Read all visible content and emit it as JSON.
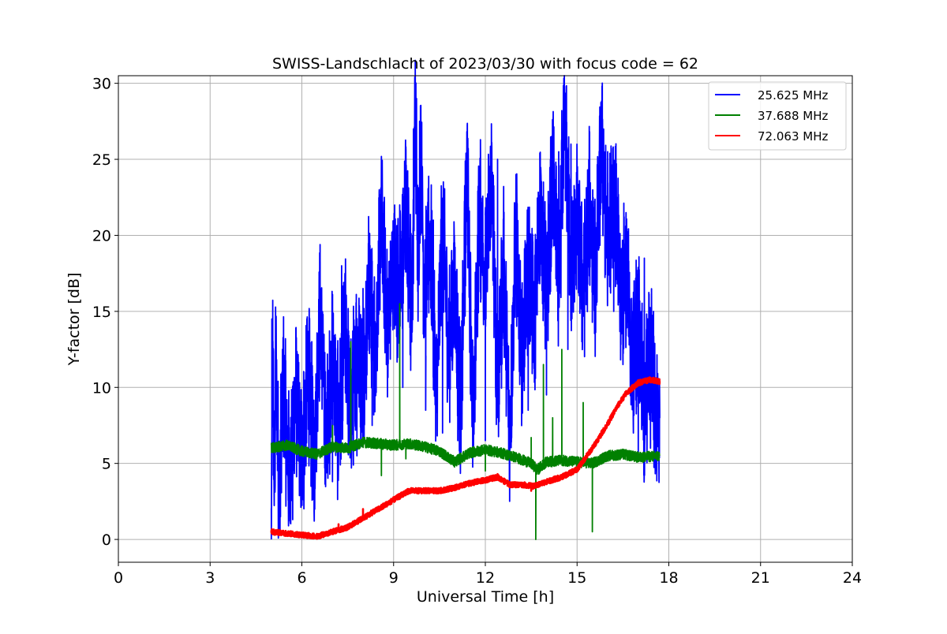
{
  "chart_data": {
    "type": "line",
    "title": "SWISS-Landschlacht of 2023/03/30 with focus code = 62",
    "xlabel": "Universal Time [h]",
    "ylabel": "Y-factor [dB]",
    "xlim": [
      0,
      24
    ],
    "ylim": [
      -1.5,
      30.5
    ],
    "xticks": [
      0,
      3,
      6,
      9,
      12,
      15,
      18,
      21,
      24
    ],
    "yticks": [
      0,
      5,
      10,
      15,
      20,
      25,
      30
    ],
    "grid": true,
    "legend_position": "top-right",
    "series": [
      {
        "name": "25.625 MHz",
        "color": "#0000ff",
        "x": [
          5.0,
          5.05,
          5.1,
          5.15,
          5.25,
          5.4,
          5.6,
          5.8,
          6.0,
          6.2,
          6.4,
          6.6,
          6.8,
          7.0,
          7.2,
          7.4,
          7.6,
          7.8,
          8.0,
          8.2,
          8.4,
          8.6,
          8.8,
          9.0,
          9.2,
          9.4,
          9.6,
          9.7,
          9.8,
          9.9,
          10.0,
          10.2,
          10.4,
          10.6,
          10.8,
          11.0,
          11.2,
          11.4,
          11.6,
          11.8,
          12.0,
          12.2,
          12.4,
          12.6,
          12.8,
          13.0,
          13.2,
          13.4,
          13.6,
          13.8,
          14.0,
          14.2,
          14.4,
          14.6,
          14.8,
          15.0,
          15.2,
          15.4,
          15.6,
          15.8,
          16.0,
          16.2,
          16.4,
          16.6,
          16.8,
          17.0,
          17.2,
          17.4,
          17.6,
          17.7
        ],
        "y": [
          1.0,
          13.0,
          2.5,
          12.0,
          3.0,
          10.0,
          4.0,
          9.5,
          5.0,
          11.0,
          5.5,
          15.0,
          6.5,
          12.0,
          7.0,
          14.0,
          8.0,
          13.0,
          10.0,
          17.0,
          12.0,
          21.0,
          14.0,
          18.0,
          16.0,
          22.0,
          15.0,
          28.0,
          18.0,
          26.0,
          16.0,
          20.0,
          9.0,
          21.0,
          12.0,
          17.0,
          8.0,
          25.0,
          7.0,
          22.0,
          17.0,
          24.0,
          10.0,
          18.0,
          7.0,
          20.0,
          12.0,
          18.0,
          14.0,
          22.0,
          16.0,
          24.0,
          17.0,
          27.0,
          18.0,
          21.0,
          16.0,
          22.0,
          17.0,
          26.0,
          19.0,
          24.0,
          16.0,
          18.0,
          11.0,
          15.0,
          8.0,
          13.0,
          7.0,
          8.0
        ]
      },
      {
        "name": "37.688 MHz",
        "color": "#008000",
        "x": [
          5.0,
          5.5,
          6.0,
          6.5,
          7.0,
          7.5,
          8.0,
          8.5,
          9.0,
          9.5,
          10.0,
          10.5,
          11.0,
          11.5,
          12.0,
          12.5,
          13.0,
          13.5,
          13.7,
          14.0,
          14.5,
          15.0,
          15.5,
          16.0,
          16.5,
          17.0,
          17.7
        ],
        "y": [
          6.0,
          6.2,
          5.8,
          5.6,
          6.1,
          6.0,
          6.4,
          6.3,
          6.2,
          6.3,
          6.1,
          5.8,
          5.1,
          5.7,
          5.9,
          5.7,
          5.4,
          5.0,
          4.6,
          5.1,
          5.2,
          5.1,
          5.0,
          5.5,
          5.6,
          5.4,
          5.5
        ]
      },
      {
        "name": "72.063 MHz",
        "color": "#ff0000",
        "x": [
          5.0,
          5.5,
          6.0,
          6.5,
          7.0,
          7.5,
          8.0,
          8.5,
          9.0,
          9.5,
          10.0,
          10.5,
          11.0,
          11.5,
          12.0,
          12.4,
          12.8,
          13.2,
          13.6,
          14.0,
          14.5,
          15.0,
          15.5,
          16.0,
          16.3,
          16.6,
          17.0,
          17.4,
          17.7
        ],
        "y": [
          0.5,
          0.4,
          0.3,
          0.2,
          0.5,
          0.8,
          1.4,
          2.0,
          2.6,
          3.2,
          3.2,
          3.2,
          3.4,
          3.7,
          3.9,
          4.1,
          3.6,
          3.6,
          3.5,
          3.8,
          4.1,
          4.6,
          6.0,
          7.6,
          8.7,
          9.6,
          10.3,
          10.5,
          10.4
        ]
      }
    ],
    "spikes": [
      {
        "series": 0,
        "points": [
          [
            5.0,
            0.0
          ],
          [
            5.02,
            14.5
          ],
          [
            5.15,
            12.0
          ],
          [
            5.3,
            1.5
          ],
          [
            5.35,
            11.0
          ],
          [
            5.7,
            1.3
          ],
          [
            5.8,
            10.8
          ],
          [
            6.3,
            3.5
          ],
          [
            6.6,
            16.5
          ],
          [
            7.0,
            3.8
          ],
          [
            7.3,
            18.0
          ],
          [
            7.8,
            5.5
          ],
          [
            8.0,
            16.5
          ],
          [
            8.3,
            7.5
          ],
          [
            8.7,
            22.5
          ],
          [
            9.2,
            22.0
          ],
          [
            9.3,
            10.0
          ],
          [
            9.5,
            19.5
          ],
          [
            9.65,
            27.0
          ],
          [
            9.75,
            29.0
          ],
          [
            9.85,
            27.5
          ],
          [
            10.05,
            8.5
          ],
          [
            10.3,
            21.0
          ],
          [
            10.6,
            7.0
          ],
          [
            10.9,
            19.0
          ],
          [
            11.1,
            6.5
          ],
          [
            11.4,
            25.8
          ],
          [
            11.6,
            9.0
          ],
          [
            11.8,
            18.0
          ],
          [
            12.0,
            6.5
          ],
          [
            12.4,
            25.0
          ],
          [
            12.6,
            17.0
          ],
          [
            12.8,
            5.5
          ],
          [
            13.0,
            24.0
          ],
          [
            13.4,
            8.5
          ],
          [
            13.8,
            22.0
          ],
          [
            14.0,
            9.5
          ],
          [
            14.2,
            24.0
          ],
          [
            14.4,
            25.5
          ],
          [
            14.5,
            28.2
          ],
          [
            14.7,
            12.5
          ],
          [
            14.8,
            26.0
          ],
          [
            15.2,
            16.5
          ],
          [
            15.5,
            18.0
          ],
          [
            15.8,
            27.0
          ],
          [
            16.0,
            25.5
          ],
          [
            16.2,
            15.0
          ],
          [
            16.3,
            22.5
          ],
          [
            16.5,
            11.5
          ],
          [
            16.8,
            15.0
          ],
          [
            17.0,
            5.5
          ],
          [
            17.2,
            18.5
          ],
          [
            17.4,
            6.0
          ],
          [
            17.5,
            15.0
          ],
          [
            17.6,
            5.5
          ],
          [
            17.7,
            9.0
          ]
        ]
      },
      {
        "series": 1,
        "points": [
          [
            7.0,
            7.5
          ],
          [
            7.6,
            13.0
          ],
          [
            8.6,
            4.2
          ],
          [
            9.2,
            15.5
          ],
          [
            9.4,
            5.3
          ],
          [
            12.0,
            4.5
          ],
          [
            13.5,
            6.7
          ],
          [
            13.65,
            0.0
          ],
          [
            13.75,
            4.3
          ],
          [
            13.9,
            11.5
          ],
          [
            14.2,
            8.0
          ],
          [
            14.5,
            12.5
          ],
          [
            15.0,
            4.8
          ],
          [
            15.2,
            9.0
          ],
          [
            15.5,
            0.5
          ],
          [
            15.6,
            5.2
          ]
        ]
      },
      {
        "series": 2,
        "points": [
          [
            7.2,
            1.0
          ],
          [
            8.0,
            2.0
          ],
          [
            12.4,
            4.3
          ],
          [
            13.5,
            3.2
          ]
        ]
      }
    ]
  }
}
